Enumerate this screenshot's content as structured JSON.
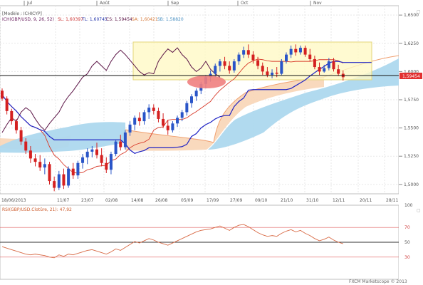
{
  "chart_data": [
    {
      "type": "candlestick",
      "instrument": "GBP/USD",
      "header": {
        "model": "[Modèle : ICHICYP]",
        "indicator": "ICH(GBP/USD, 9, 26, 52)",
        "sl": "SL: 1,60397",
        "tl": "TL: 1,60745",
        "cs": "CS: 1,59454",
        "sa": "SA: 1,60421",
        "sb": "SB: 1,58820"
      },
      "top_labels": [
        "Jul",
        "Août",
        "Sep",
        "Oct",
        "Nov"
      ],
      "x_ticks": [
        "18/06/2013",
        "11/07",
        "23/07",
        "02/08",
        "14/08",
        "26/08",
        "05/09",
        "17/09",
        "27/09",
        "09/10",
        "21/10",
        "31/10",
        "12/11",
        "20/11",
        "28/11"
      ],
      "y_ticks": [
        "1,6500",
        "1,6250",
        "1,6000",
        "1,5750",
        "1,5500",
        "1,5250",
        "1,5000"
      ],
      "ylim": [
        1.4917,
        1.6583
      ],
      "last_price_label": "1,59454",
      "grid": true,
      "colors": {
        "up": "#2a55c8",
        "down": "#d42020",
        "tenkan": "#d83a2a",
        "kijun": "#1f23c4",
        "chikou": "#5b1446",
        "kumo_bull": "#a9d6ee",
        "kumo_bear": "#f7d2b0",
        "box": "#fff9c4",
        "box_border": "#e8dc8c",
        "marker": "#f07a7a"
      },
      "series_note": "OHLC price series (GBP/USD daily) with Ichimoku lines",
      "candles_ohlc": [
        [
          1.583,
          1.585,
          1.574,
          1.576
        ],
        [
          1.576,
          1.578,
          1.562,
          1.565
        ],
        [
          1.565,
          1.567,
          1.553,
          1.556
        ],
        [
          1.556,
          1.558,
          1.545,
          1.548
        ],
        [
          1.548,
          1.551,
          1.535,
          1.538
        ],
        [
          1.538,
          1.541,
          1.527,
          1.53
        ],
        [
          1.53,
          1.534,
          1.519,
          1.523
        ],
        [
          1.523,
          1.527,
          1.516,
          1.52
        ],
        [
          1.52,
          1.526,
          1.512,
          1.515
        ],
        [
          1.515,
          1.523,
          1.509,
          1.518
        ],
        [
          1.518,
          1.52,
          1.5,
          1.503
        ],
        [
          1.503,
          1.507,
          1.494,
          1.497
        ],
        [
          1.497,
          1.512,
          1.495,
          1.509
        ],
        [
          1.509,
          1.514,
          1.496,
          1.499
        ],
        [
          1.499,
          1.516,
          1.497,
          1.514
        ],
        [
          1.514,
          1.519,
          1.505,
          1.508
        ],
        [
          1.508,
          1.521,
          1.505,
          1.519
        ],
        [
          1.519,
          1.527,
          1.514,
          1.524
        ],
        [
          1.524,
          1.532,
          1.518,
          1.529
        ],
        [
          1.529,
          1.534,
          1.524,
          1.531
        ],
        [
          1.531,
          1.537,
          1.523,
          1.526
        ],
        [
          1.526,
          1.532,
          1.516,
          1.519
        ],
        [
          1.519,
          1.524,
          1.51,
          1.513
        ],
        [
          1.513,
          1.529,
          1.509,
          1.527
        ],
        [
          1.527,
          1.54,
          1.525,
          1.538
        ],
        [
          1.538,
          1.544,
          1.53,
          1.533
        ],
        [
          1.533,
          1.548,
          1.531,
          1.546
        ],
        [
          1.546,
          1.556,
          1.543,
          1.553
        ],
        [
          1.553,
          1.561,
          1.548,
          1.559
        ],
        [
          1.559,
          1.564,
          1.552,
          1.556
        ],
        [
          1.556,
          1.566,
          1.553,
          1.564
        ],
        [
          1.564,
          1.571,
          1.558,
          1.568
        ],
        [
          1.568,
          1.571,
          1.562,
          1.565
        ],
        [
          1.565,
          1.568,
          1.555,
          1.558
        ],
        [
          1.558,
          1.563,
          1.55,
          1.552
        ],
        [
          1.552,
          1.557,
          1.544,
          1.548
        ],
        [
          1.548,
          1.556,
          1.546,
          1.554
        ],
        [
          1.554,
          1.561,
          1.551,
          1.559
        ],
        [
          1.559,
          1.566,
          1.556,
          1.564
        ],
        [
          1.564,
          1.574,
          1.561,
          1.572
        ],
        [
          1.572,
          1.58,
          1.568,
          1.578
        ],
        [
          1.578,
          1.585,
          1.574,
          1.583
        ],
        [
          1.583,
          1.591,
          1.58,
          1.589
        ],
        [
          1.589,
          1.597,
          1.585,
          1.595
        ],
        [
          1.595,
          1.601,
          1.591,
          1.598
        ],
        [
          1.598,
          1.607,
          1.595,
          1.605
        ],
        [
          1.605,
          1.611,
          1.6,
          1.609
        ],
        [
          1.609,
          1.613,
          1.602,
          1.605
        ],
        [
          1.605,
          1.609,
          1.598,
          1.601
        ],
        [
          1.601,
          1.611,
          1.599,
          1.609
        ],
        [
          1.609,
          1.617,
          1.606,
          1.615
        ],
        [
          1.615,
          1.622,
          1.612,
          1.619
        ],
        [
          1.619,
          1.624,
          1.612,
          1.615
        ],
        [
          1.615,
          1.618,
          1.607,
          1.61
        ],
        [
          1.61,
          1.613,
          1.602,
          1.605
        ],
        [
          1.605,
          1.608,
          1.597,
          1.6
        ],
        [
          1.6,
          1.604,
          1.595,
          1.597
        ],
        [
          1.597,
          1.602,
          1.594,
          1.599
        ],
        [
          1.599,
          1.604,
          1.595,
          1.598
        ],
        [
          1.598,
          1.611,
          1.597,
          1.609
        ],
        [
          1.609,
          1.617,
          1.607,
          1.615
        ],
        [
          1.615,
          1.623,
          1.612,
          1.62
        ],
        [
          1.62,
          1.624,
          1.614,
          1.617
        ],
        [
          1.617,
          1.623,
          1.615,
          1.621
        ],
        [
          1.621,
          1.623,
          1.613,
          1.615
        ],
        [
          1.615,
          1.62,
          1.609,
          1.611
        ],
        [
          1.611,
          1.614,
          1.602,
          1.604
        ],
        [
          1.604,
          1.608,
          1.597,
          1.6
        ],
        [
          1.6,
          1.606,
          1.599,
          1.603
        ],
        [
          1.603,
          1.612,
          1.601,
          1.609
        ],
        [
          1.609,
          1.612,
          1.6,
          1.602
        ],
        [
          1.602,
          1.606,
          1.596,
          1.598
        ],
        [
          1.598,
          1.601,
          1.592,
          1.595
        ]
      ]
    },
    {
      "type": "line",
      "title": "RSI(GBP/USD.Clotûre, 21): 47,92",
      "y_ticks": [
        "100",
        "70",
        "50",
        "30"
      ],
      "ylim": [
        0,
        100
      ],
      "series_note": "RSI series values (0-100)",
      "values": [
        44,
        42,
        40,
        38,
        36,
        34,
        33,
        34,
        33,
        32,
        30,
        29,
        33,
        31,
        34,
        33,
        35,
        37,
        39,
        40,
        38,
        36,
        34,
        37,
        41,
        39,
        43,
        47,
        51,
        49,
        52,
        55,
        53,
        50,
        48,
        46,
        49,
        52,
        55,
        58,
        61,
        64,
        66,
        67,
        68,
        70,
        72,
        69,
        66,
        70,
        73,
        74,
        71,
        67,
        63,
        60,
        58,
        59,
        58,
        62,
        65,
        67,
        64,
        66,
        62,
        59,
        55,
        52,
        54,
        57,
        53,
        50,
        48
      ]
    }
  ],
  "footer": {
    "brand": "FXCM Marketscope © 2013"
  }
}
